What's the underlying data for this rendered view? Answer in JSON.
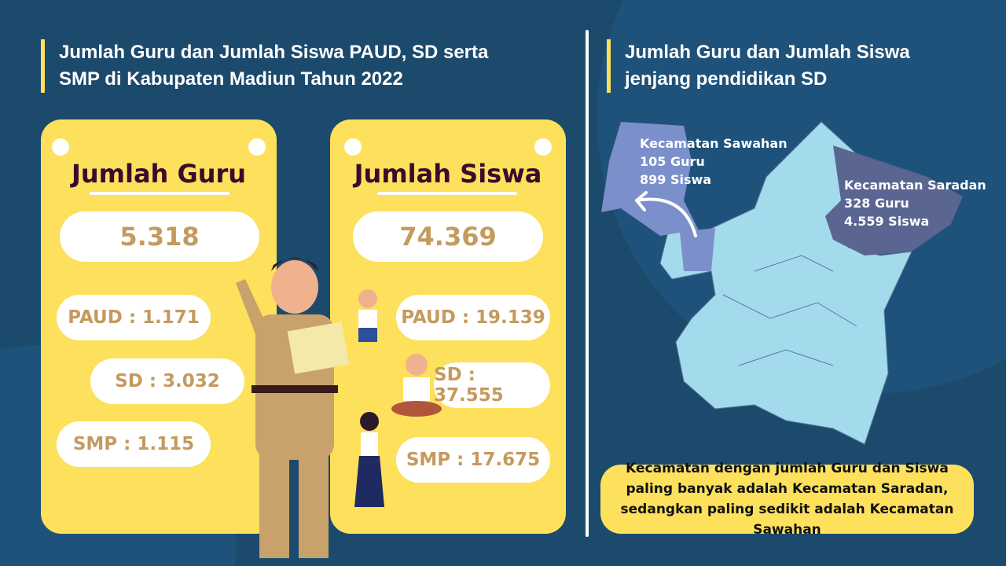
{
  "left": {
    "title_line1": "Jumlah Guru dan Jumlah Siswa PAUD, SD serta",
    "title_line2": "SMP di Kabupaten Madiun Tahun 2022",
    "guru": {
      "heading": "Jumlah Guru",
      "total": "5.318",
      "paud": "PAUD : 1.171",
      "sd": "SD : 3.032",
      "smp": "SMP : 1.115"
    },
    "siswa": {
      "heading": "Jumlah Siswa",
      "total": "74.369",
      "paud": "PAUD : 19.139",
      "sd": "SD : 37.555",
      "smp": "SMP : 17.675"
    }
  },
  "right": {
    "title_line1": "Jumlah Guru dan Jumlah Siswa",
    "title_line2": "jenjang pendidikan SD",
    "sawahan": {
      "name": "Kecamatan Sawahan",
      "guru": "105 Guru",
      "siswa": "899 Siswa"
    },
    "saradan": {
      "name": "Kecamatan Saradan",
      "guru": "328 Guru",
      "siswa": "4.559 Siswa"
    },
    "note": "Kecamatan dengan jumlah Guru dan Siswa paling banyak adalah Kecamatan Saradan, sedangkan paling sedikit adalah Kecamatan Sawahan"
  },
  "colors": {
    "background": "#1c4a6d",
    "card": "#fde05c",
    "map_base": "#a3dbec",
    "sawahan": "#7b8fcb",
    "saradan": "#5a6591"
  }
}
